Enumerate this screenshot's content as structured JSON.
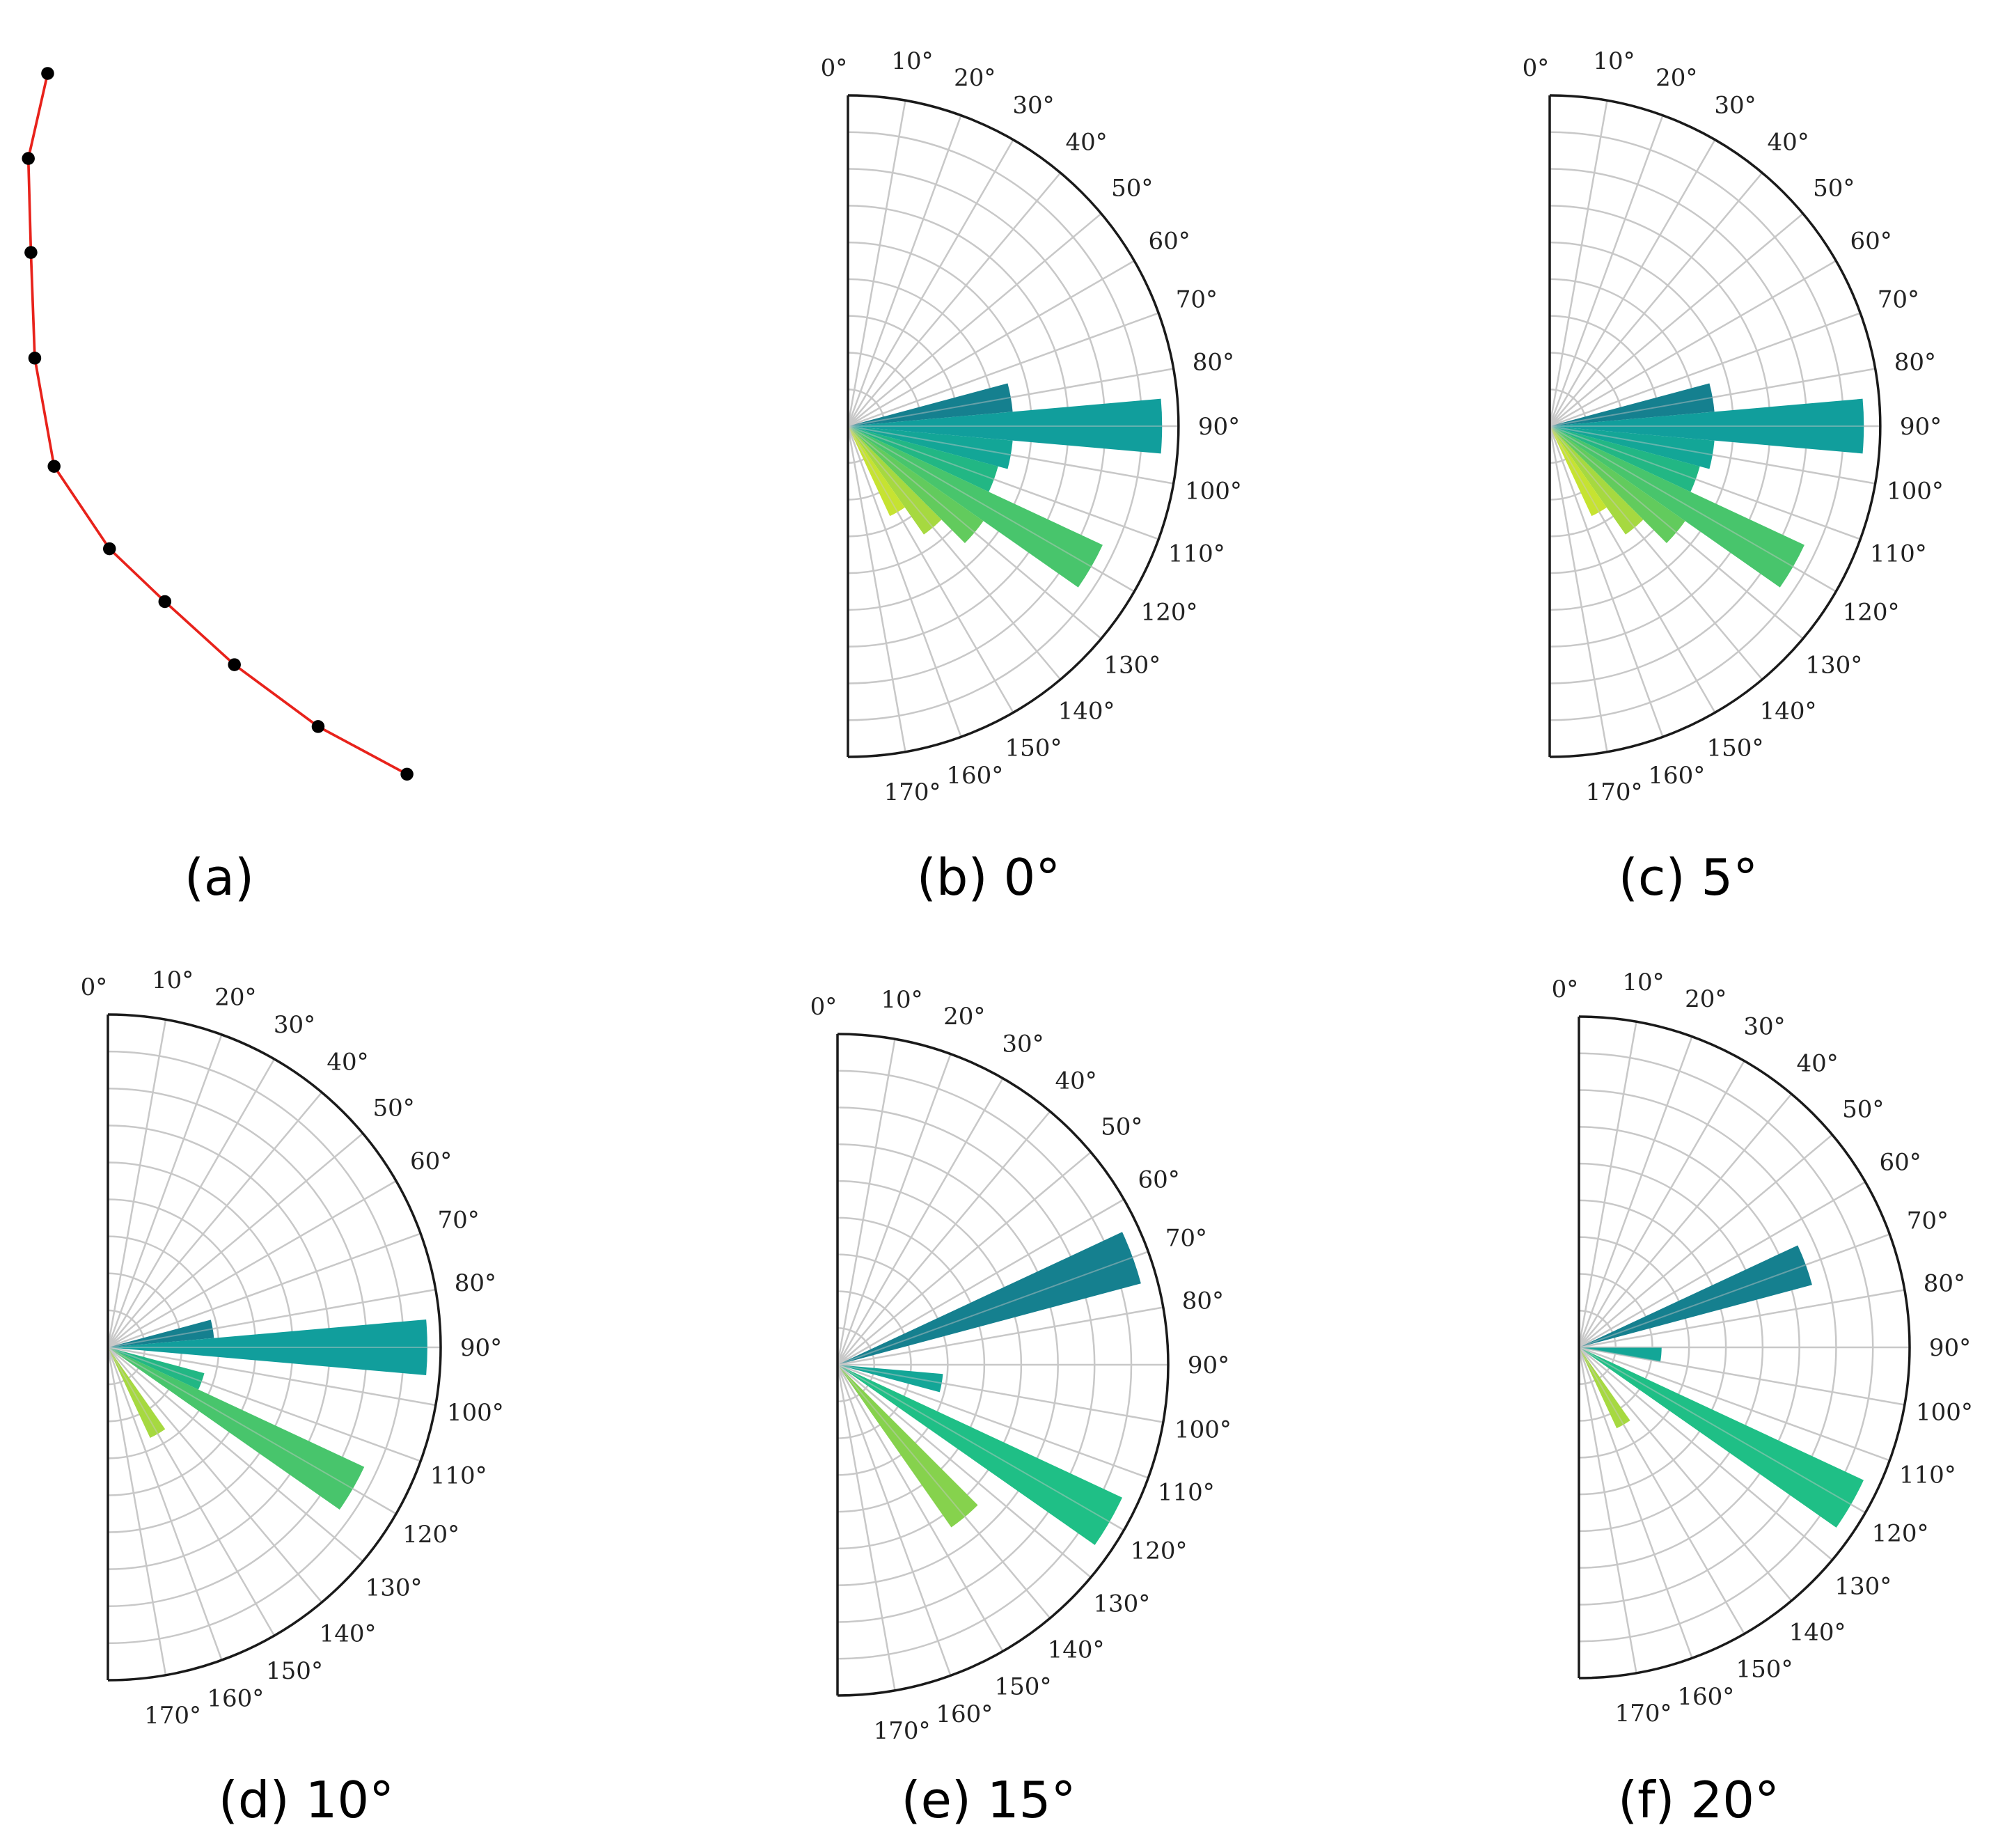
{
  "panels": [
    {
      "id": "a",
      "caption": "(a)"
    },
    {
      "id": "b",
      "caption": "(b) 0°"
    },
    {
      "id": "c",
      "caption": "(c) 5°"
    },
    {
      "id": "d",
      "caption": "(d) 10°"
    },
    {
      "id": "e",
      "caption": "(e) 15°"
    },
    {
      "id": "f",
      "caption": "(f) 20°"
    }
  ],
  "angle_labels": [
    "0°",
    "10°",
    "20°",
    "30°",
    "40°",
    "50°",
    "60°",
    "70°",
    "80°",
    "90°",
    "100°",
    "110°",
    "120°",
    "130°",
    "140°",
    "150°",
    "160°",
    "170°"
  ],
  "chart_data": [
    {
      "panel": "a",
      "type": "line",
      "series": [
        {
          "color": "#e8221b",
          "marker_color": "#000000",
          "points": [
            [
              37,
              57
            ],
            [
              22,
              123
            ],
            [
              24,
              196
            ],
            [
              27,
              278
            ],
            [
              42,
              362
            ],
            [
              85,
              426
            ],
            [
              128,
              467
            ],
            [
              182,
              516
            ],
            [
              247,
              564
            ],
            [
              316,
              601
            ]
          ]
        }
      ]
    },
    {
      "panel": "b",
      "type": "bar",
      "projection": "polar-half",
      "angle_range_deg": [
        0,
        180
      ],
      "rlim": [
        0,
        1
      ],
      "bar_width_deg": 10,
      "bars": [
        {
          "angle": 80,
          "r": 0.5,
          "color": "#15808f"
        },
        {
          "angle": 90,
          "r": 0.95,
          "color": "#119e9c"
        },
        {
          "angle": 100,
          "r": 0.5,
          "color": "#13a697"
        },
        {
          "angle": 110,
          "r": 0.47,
          "color": "#22b784"
        },
        {
          "angle": 120,
          "r": 0.85,
          "color": "#48c56c"
        },
        {
          "angle": 130,
          "r": 0.5,
          "color": "#62cb5d"
        },
        {
          "angle": 140,
          "r": 0.4,
          "color": "#a6d940"
        },
        {
          "angle": 150,
          "r": 0.3,
          "color": "#c6e331"
        }
      ]
    },
    {
      "panel": "c",
      "type": "bar",
      "projection": "polar-half",
      "angle_range_deg": [
        0,
        180
      ],
      "rlim": [
        0,
        1
      ],
      "bar_width_deg": 10,
      "bars": [
        {
          "angle": 80,
          "r": 0.5,
          "color": "#15808f"
        },
        {
          "angle": 90,
          "r": 0.95,
          "color": "#119e9c"
        },
        {
          "angle": 100,
          "r": 0.5,
          "color": "#13a697"
        },
        {
          "angle": 110,
          "r": 0.47,
          "color": "#22b784"
        },
        {
          "angle": 120,
          "r": 0.85,
          "color": "#48c56c"
        },
        {
          "angle": 130,
          "r": 0.5,
          "color": "#62cb5d"
        },
        {
          "angle": 140,
          "r": 0.4,
          "color": "#a6d940"
        },
        {
          "angle": 150,
          "r": 0.3,
          "color": "#c6e331"
        }
      ]
    },
    {
      "panel": "d",
      "type": "bar",
      "projection": "polar-half",
      "angle_range_deg": [
        0,
        180
      ],
      "rlim": [
        0,
        1
      ],
      "bar_width_deg": 10,
      "bars": [
        {
          "angle": 80,
          "r": 0.32,
          "color": "#15808f"
        },
        {
          "angle": 90,
          "r": 0.96,
          "color": "#119e9c"
        },
        {
          "angle": 110,
          "r": 0.3,
          "color": "#22b784"
        },
        {
          "angle": 120,
          "r": 0.85,
          "color": "#48c56c"
        },
        {
          "angle": 150,
          "r": 0.3,
          "color": "#a6d940"
        }
      ]
    },
    {
      "panel": "e",
      "type": "bar",
      "projection": "polar-half",
      "angle_range_deg": [
        0,
        180
      ],
      "rlim": [
        0,
        1
      ],
      "bar_width_deg": 10,
      "bars": [
        {
          "angle": 70,
          "r": 0.95,
          "color": "#15808f"
        },
        {
          "angle": 100,
          "r": 0.32,
          "color": "#13a697"
        },
        {
          "angle": 120,
          "r": 0.95,
          "color": "#1fbf86"
        },
        {
          "angle": 140,
          "r": 0.6,
          "color": "#86d24d"
        }
      ]
    },
    {
      "panel": "f",
      "type": "bar",
      "projection": "polar-half",
      "angle_range_deg": [
        0,
        180
      ],
      "rlim": [
        0,
        1
      ],
      "bar_width_deg": 10,
      "bars": [
        {
          "angle": 70,
          "r": 0.73,
          "color": "#15808f"
        },
        {
          "angle": 95,
          "r": 0.25,
          "color": "#13a697"
        },
        {
          "angle": 120,
          "r": 0.95,
          "color": "#1fbf86"
        },
        {
          "angle": 150,
          "r": 0.27,
          "color": "#a6d940"
        }
      ]
    }
  ]
}
